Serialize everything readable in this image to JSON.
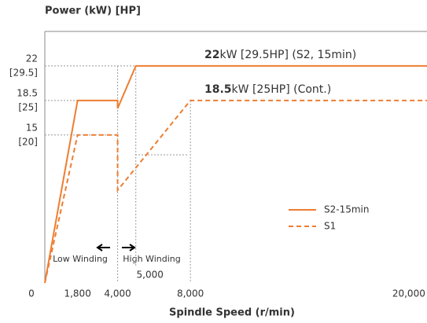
{
  "chart_data": {
    "type": "line",
    "title": "Power (kW) [HP]",
    "xlabel": "Spindle Speed (r/min)",
    "xlim": [
      0,
      21000
    ],
    "ylim": [
      0,
      25.5
    ],
    "xticks": [
      0,
      {
        "value": 1800,
        "label": "1,800"
      },
      {
        "value": 4000,
        "label": "4,000"
      },
      {
        "value": 8000,
        "label": "8,000"
      },
      {
        "value": 20000,
        "label": "20,000"
      }
    ],
    "yticks": [
      15,
      18.5,
      22
    ],
    "ytick_hp_labels": [
      "[20]",
      "[25]",
      "[29.5]"
    ],
    "marker_label": {
      "value": 5000,
      "label": "5,000"
    },
    "series": [
      {
        "name": "S2-15min",
        "color": "#ee7d31",
        "style": "solid",
        "x": [
          0,
          1800,
          4000,
          4000,
          5000,
          21000
        ],
        "values": [
          0,
          18.5,
          18.5,
          17.7,
          22,
          22
        ]
      },
      {
        "name": "S1",
        "color": "#ee7d31",
        "style": "dashed",
        "x": [
          0,
          1800,
          4000,
          4000,
          8000,
          21000
        ],
        "values": [
          0,
          15,
          15,
          9.4,
          18.5,
          18.5
        ]
      }
    ],
    "annotations": [
      {
        "bold": "22",
        "text": "kW [29.5HP] (S2, 15min)"
      },
      {
        "bold": "18.5",
        "text": "kW [25HP] (Cont.)"
      }
    ],
    "winding_labels": [
      "Low Winding",
      "High Winding"
    ]
  }
}
